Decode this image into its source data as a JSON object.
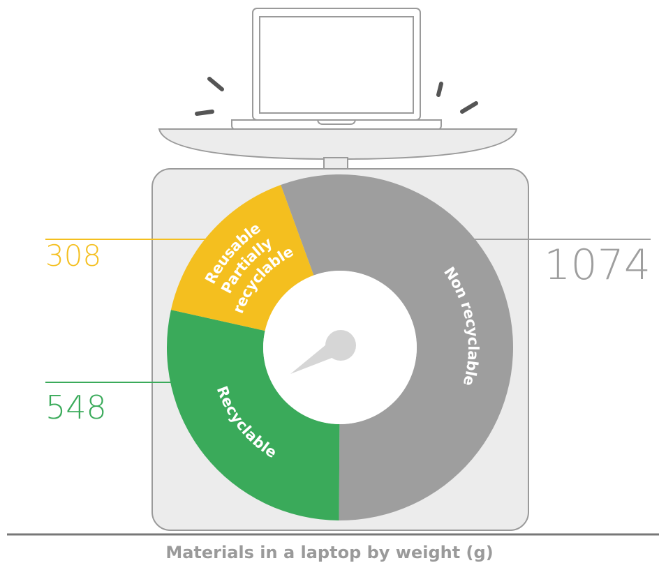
{
  "chart_data": {
    "type": "donut",
    "title": "Materials in a laptop by weight (g)",
    "categories": [
      [
        "Non recyclable"
      ],
      [
        "Recyclable"
      ],
      [
        "Reusable",
        "Partially",
        "recyclable"
      ]
    ],
    "values": [
      1074,
      548,
      308
    ],
    "colors": [
      "#9e9e9e",
      "#3aaa5a",
      "#f4bf1f"
    ]
  }
}
